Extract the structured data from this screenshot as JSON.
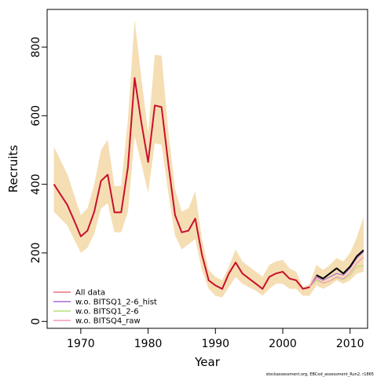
{
  "chart_data": {
    "type": "line",
    "xlabel": "Year",
    "ylabel": "Recruits",
    "xlim": [
      1965,
      2012.6
    ],
    "ylim": [
      -20,
      910
    ],
    "x_ticks": [
      1970,
      1980,
      1990,
      2000,
      2010
    ],
    "y_ticks": [
      0,
      200,
      400,
      600,
      800
    ],
    "x": [
      1966,
      1967,
      1968,
      1969,
      1970,
      1971,
      1972,
      1973,
      1974,
      1975,
      1976,
      1977,
      1978,
      1979,
      1980,
      1981,
      1982,
      1983,
      1984,
      1985,
      1986,
      1987,
      1988,
      1989,
      1990,
      1991,
      1992,
      1993,
      1994,
      1995,
      1996,
      1997,
      1998,
      1999,
      2000,
      2001,
      2002,
      2003,
      2004,
      2005,
      2006,
      2007,
      2008,
      2009,
      2010,
      2011,
      2012
    ],
    "confidence_band": {
      "color": "#f5deb3",
      "upper": [
        510,
        470,
        430,
        370,
        310,
        330,
        400,
        500,
        530,
        395,
        395,
        590,
        880,
        710,
        550,
        778,
        775,
        555,
        385,
        320,
        330,
        380,
        240,
        150,
        130,
        120,
        160,
        210,
        175,
        160,
        145,
        130,
        165,
        175,
        180,
        155,
        145,
        100,
        110,
        165,
        150,
        165,
        185,
        175,
        200,
        245,
        305
      ],
      "lower": [
        320,
        300,
        280,
        240,
        200,
        215,
        255,
        330,
        345,
        260,
        260,
        320,
        540,
        460,
        375,
        520,
        515,
        375,
        250,
        210,
        225,
        240,
        150,
        95,
        75,
        70,
        100,
        130,
        110,
        100,
        90,
        75,
        95,
        110,
        110,
        95,
        95,
        75,
        75,
        105,
        95,
        105,
        120,
        110,
        120,
        140,
        145
      ]
    },
    "series": [
      {
        "name": "All data",
        "color": "#e8737e",
        "values": [
          400,
          370,
          340,
          295,
          248,
          265,
          320,
          410,
          428,
          318,
          318,
          450,
          710,
          580,
          465,
          630,
          625,
          460,
          310,
          260,
          265,
          300,
          195,
          120,
          105,
          95,
          140,
          172,
          140,
          125,
          110,
          95,
          130,
          140,
          145,
          125,
          120,
          95,
          100,
          135,
          125,
          140,
          155,
          140,
          160,
          190,
          205
        ]
      },
      {
        "name": "w.o. BITSQ1_2-6_hist",
        "color": "#a56bd0",
        "values": [
          400,
          370,
          340,
          295,
          248,
          265,
          320,
          410,
          428,
          318,
          318,
          450,
          710,
          580,
          465,
          630,
          625,
          460,
          310,
          260,
          265,
          300,
          195,
          120,
          105,
          95,
          140,
          172,
          140,
          125,
          110,
          95,
          130,
          140,
          145,
          125,
          120,
          95,
          100,
          130,
          120,
          130,
          140,
          135,
          155,
          185,
          203
        ]
      },
      {
        "name": "w.o. BITSQ1_2-6",
        "color": "#b7dd7e",
        "values": [
          400,
          370,
          340,
          295,
          248,
          265,
          320,
          410,
          428,
          318,
          318,
          450,
          710,
          580,
          465,
          630,
          625,
          460,
          310,
          260,
          265,
          300,
          195,
          120,
          105,
          95,
          140,
          172,
          140,
          125,
          110,
          95,
          130,
          140,
          145,
          125,
          120,
          95,
          100,
          120,
          112,
          118,
          128,
          122,
          135,
          160,
          163
        ]
      },
      {
        "name": "w.o. BITSQ4_raw",
        "color": "#f49ac1",
        "values": [
          400,
          370,
          340,
          295,
          248,
          265,
          320,
          410,
          428,
          318,
          318,
          450,
          710,
          580,
          465,
          630,
          625,
          460,
          310,
          260,
          265,
          300,
          195,
          120,
          105,
          95,
          140,
          172,
          140,
          125,
          110,
          95,
          130,
          140,
          145,
          125,
          120,
          95,
          100,
          125,
          112,
          118,
          130,
          124,
          142,
          170,
          188
        ]
      },
      {
        "name": "",
        "color": "#000000",
        "values": [
          null,
          null,
          null,
          null,
          null,
          null,
          null,
          null,
          null,
          null,
          null,
          null,
          null,
          null,
          null,
          null,
          null,
          null,
          null,
          null,
          null,
          null,
          null,
          null,
          null,
          null,
          null,
          null,
          null,
          null,
          null,
          null,
          null,
          null,
          null,
          null,
          null,
          null,
          null,
          135,
          125,
          140,
          155,
          140,
          160,
          190,
          208
        ]
      },
      {
        "name": "",
        "color": "#c8102e",
        "values": [
          400,
          370,
          340,
          295,
          248,
          265,
          320,
          410,
          428,
          318,
          318,
          450,
          710,
          580,
          465,
          630,
          625,
          460,
          310,
          260,
          265,
          300,
          195,
          120,
          105,
          95,
          140,
          172,
          140,
          125,
          110,
          95,
          130,
          140,
          145,
          125,
          120,
          95,
          100,
          null,
          null,
          null,
          null,
          null,
          null,
          null,
          null
        ]
      }
    ],
    "legend": {
      "placement": "bottom-left",
      "entries": [
        "All data",
        "w.o. BITSQ1_2-6_hist",
        "w.o. BITSQ1_2-6",
        "w.o. BITSQ4_raw"
      ]
    },
    "footer": "stockassessment.org, EBCod_assessment_Run2, r1865",
    "grid": false
  }
}
